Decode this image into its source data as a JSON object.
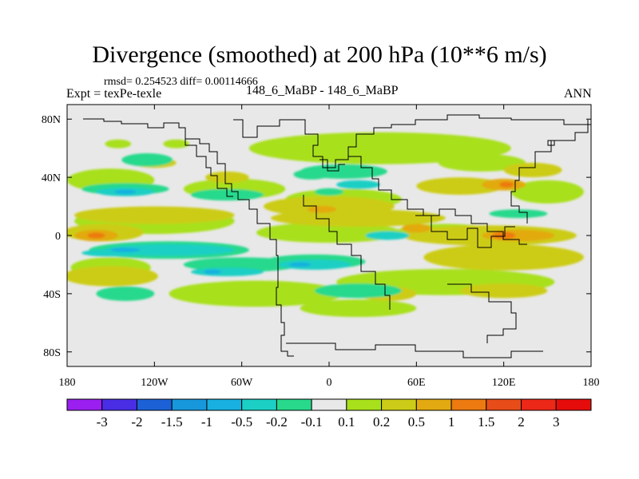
{
  "chart_data": {
    "type": "heatmap",
    "title": "Divergence (smoothed) at 200 hPa (10**6 m/s)",
    "stats_text": "rmsd= 0.254523 diff= 0.00114666",
    "left_label": "Expt = texPe-texle",
    "center_label": "148_6_MaBP - 148_6_MaBP",
    "right_label": "ANN",
    "xlim": [
      -180,
      180
    ],
    "ylim": [
      -90,
      90
    ],
    "x_ticks": [
      {
        "value": -180,
        "label": "180"
      },
      {
        "value": -120,
        "label": "120W"
      },
      {
        "value": -60,
        "label": "60W"
      },
      {
        "value": 0,
        "label": "0"
      },
      {
        "value": 60,
        "label": "60E"
      },
      {
        "value": 120,
        "label": "120E"
      },
      {
        "value": 180,
        "label": "180"
      }
    ],
    "y_ticks": [
      {
        "value": 80,
        "label": "80N"
      },
      {
        "value": 40,
        "label": "40N"
      },
      {
        "value": 0,
        "label": "0"
      },
      {
        "value": -40,
        "label": "40S"
      },
      {
        "value": -80,
        "label": "80S"
      }
    ],
    "colorbar": {
      "levels": [
        "-3",
        "-2",
        "-1.5",
        "-1",
        "-0.5",
        "-0.2",
        "-0.1",
        "0.1",
        "0.2",
        "0.5",
        "1",
        "1.5",
        "2",
        "3"
      ],
      "colors": [
        "#9a1ff0",
        "#4a2ee6",
        "#1c62d6",
        "#1898dc",
        "#18b0e0",
        "#1ccfc4",
        "#28d98c",
        "#e8e8e8",
        "#a8e01c",
        "#cccc18",
        "#e2aa10",
        "#ec7a10",
        "#e84c18",
        "#ec2818",
        "#e60c0c"
      ]
    },
    "regions": [
      {
        "level": 8,
        "lon": 35,
        "lat": 60,
        "w": 180,
        "h": 22
      },
      {
        "level": 8,
        "lon": -145,
        "lat": 63,
        "w": 18,
        "h": 6
      },
      {
        "level": 8,
        "lon": -105,
        "lat": 63,
        "w": 18,
        "h": 6
      },
      {
        "level": 8,
        "lon": -45,
        "lat": 60,
        "w": 20,
        "h": 6
      },
      {
        "level": 8,
        "lon": 105,
        "lat": 50,
        "w": 60,
        "h": 12
      },
      {
        "level": 8,
        "lon": -150,
        "lat": 38,
        "w": 60,
        "h": 16
      },
      {
        "level": 8,
        "lon": -65,
        "lat": 32,
        "w": 70,
        "h": 14
      },
      {
        "level": 8,
        "lon": 10,
        "lat": 25,
        "w": 80,
        "h": 14
      },
      {
        "level": 8,
        "lon": 150,
        "lat": 30,
        "w": 50,
        "h": 16
      },
      {
        "level": 8,
        "lon": -120,
        "lat": 10,
        "w": 110,
        "h": 18
      },
      {
        "level": 8,
        "lon": 0,
        "lat": 2,
        "w": 100,
        "h": 14
      },
      {
        "level": 8,
        "lon": 80,
        "lat": 2,
        "w": 70,
        "h": 12
      },
      {
        "level": 8,
        "lon": -150,
        "lat": -22,
        "w": 55,
        "h": 14
      },
      {
        "level": 8,
        "lon": -50,
        "lat": -40,
        "w": 120,
        "h": 18
      },
      {
        "level": 8,
        "lon": 80,
        "lat": -32,
        "w": 150,
        "h": 18
      },
      {
        "level": 8,
        "lon": 20,
        "lat": -50,
        "w": 80,
        "h": 12
      },
      {
        "level": 9,
        "lon": 0,
        "lat": 20,
        "w": 90,
        "h": 14
      },
      {
        "level": 9,
        "lon": -120,
        "lat": 14,
        "w": 110,
        "h": 12
      },
      {
        "level": 9,
        "lon": 20,
        "lat": 12,
        "w": 120,
        "h": 12
      },
      {
        "level": 9,
        "lon": 110,
        "lat": 0,
        "w": 120,
        "h": 14
      },
      {
        "level": 9,
        "lon": -155,
        "lat": 2,
        "w": 55,
        "h": 12
      },
      {
        "level": 9,
        "lon": -150,
        "lat": -28,
        "w": 65,
        "h": 14
      },
      {
        "level": 9,
        "lon": 120,
        "lat": -15,
        "w": 110,
        "h": 18
      },
      {
        "level": 9,
        "lon": 40,
        "lat": -40,
        "w": 40,
        "h": 10
      },
      {
        "level": 9,
        "lon": 120,
        "lat": -38,
        "w": 60,
        "h": 10
      },
      {
        "level": 9,
        "lon": 90,
        "lat": 34,
        "w": 60,
        "h": 12
      },
      {
        "level": 9,
        "lon": 140,
        "lat": 45,
        "w": 40,
        "h": 10
      },
      {
        "level": 9,
        "lon": -120,
        "lat": 50,
        "w": 30,
        "h": 7
      },
      {
        "level": 9,
        "lon": -70,
        "lat": 40,
        "w": 30,
        "h": 8
      },
      {
        "level": 10,
        "lon": -160,
        "lat": 0,
        "w": 30,
        "h": 8
      },
      {
        "level": 10,
        "lon": 130,
        "lat": 0,
        "w": 50,
        "h": 8
      },
      {
        "level": 10,
        "lon": 120,
        "lat": 35,
        "w": 30,
        "h": 8
      },
      {
        "level": 10,
        "lon": 60,
        "lat": 5,
        "w": 20,
        "h": 6
      },
      {
        "level": 10,
        "lon": -5,
        "lat": 18,
        "w": 20,
        "h": 5
      },
      {
        "level": 11,
        "lon": 120,
        "lat": 0,
        "w": 16,
        "h": 5
      },
      {
        "level": 11,
        "lon": 122,
        "lat": 35,
        "w": 10,
        "h": 4
      },
      {
        "level": 11,
        "lon": -160,
        "lat": 0,
        "w": 12,
        "h": 4
      },
      {
        "level": 6,
        "lon": -125,
        "lat": 52,
        "w": 35,
        "h": 9
      },
      {
        "level": 6,
        "lon": -12,
        "lat": 42,
        "w": 25,
        "h": 7
      },
      {
        "level": 6,
        "lon": 10,
        "lat": 44,
        "w": 60,
        "h": 10
      },
      {
        "level": 6,
        "lon": -140,
        "lat": 32,
        "w": 60,
        "h": 8
      },
      {
        "level": 6,
        "lon": -70,
        "lat": 28,
        "w": 50,
        "h": 8
      },
      {
        "level": 6,
        "lon": -110,
        "lat": -10,
        "w": 110,
        "h": 12
      },
      {
        "level": 6,
        "lon": -10,
        "lat": -18,
        "w": 70,
        "h": 10
      },
      {
        "level": 6,
        "lon": -60,
        "lat": -20,
        "w": 80,
        "h": 10
      },
      {
        "level": 6,
        "lon": -140,
        "lat": -40,
        "w": 40,
        "h": 10
      },
      {
        "level": 6,
        "lon": 20,
        "lat": -38,
        "w": 60,
        "h": 10
      },
      {
        "level": 6,
        "lon": 130,
        "lat": 15,
        "w": 40,
        "h": 6
      },
      {
        "level": 6,
        "lon": 0,
        "lat": 30,
        "w": 20,
        "h": 5
      },
      {
        "level": 5,
        "lon": -140,
        "lat": 30,
        "w": 40,
        "h": 6
      },
      {
        "level": 5,
        "lon": -110,
        "lat": -10,
        "w": 90,
        "h": 8
      },
      {
        "level": 5,
        "lon": -10,
        "lat": -20,
        "w": 50,
        "h": 7
      },
      {
        "level": 5,
        "lon": 40,
        "lat": 0,
        "w": 30,
        "h": 6
      },
      {
        "level": 5,
        "lon": -150,
        "lat": -12,
        "w": 40,
        "h": 5
      },
      {
        "level": 5,
        "lon": -70,
        "lat": -25,
        "w": 50,
        "h": 6
      },
      {
        "level": 5,
        "lon": 20,
        "lat": 35,
        "w": 30,
        "h": 6
      },
      {
        "level": 4,
        "lon": -140,
        "lat": 30,
        "w": 15,
        "h": 3
      },
      {
        "level": 4,
        "lon": -140,
        "lat": -10,
        "w": 20,
        "h": 3
      },
      {
        "level": 4,
        "lon": -20,
        "lat": -20,
        "w": 15,
        "h": 3
      },
      {
        "level": 4,
        "lon": -80,
        "lat": -25,
        "w": 12,
        "h": 3
      }
    ]
  }
}
